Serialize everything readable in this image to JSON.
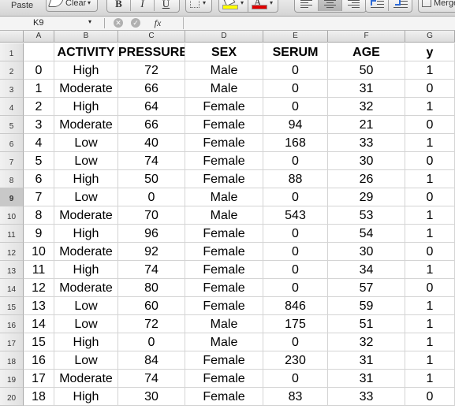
{
  "toolbar": {
    "paste_label": "Paste",
    "clear_label": "Clear",
    "bold_label": "B",
    "italic_label": "I",
    "underline_label": "U",
    "font_color_label": "A",
    "merge_label": "Merge",
    "fill_color": "#ffff00",
    "font_color": "#e00000"
  },
  "formula_bar": {
    "name_box": "K9",
    "fx_label": "fx",
    "formula": ""
  },
  "sheet": {
    "active_row": "9",
    "columns": [
      "A",
      "B",
      "C",
      "D",
      "E",
      "F",
      "G"
    ],
    "row_numbers": [
      "1",
      "2",
      "3",
      "4",
      "5",
      "6",
      "7",
      "8",
      "9",
      "10",
      "11",
      "12",
      "13",
      "14",
      "15",
      "16",
      "17",
      "18",
      "19",
      "20"
    ],
    "rows": [
      [
        "",
        "ACTIVITY",
        "PRESSURE",
        "SEX",
        "SERUM",
        "AGE",
        "y"
      ],
      [
        "0",
        "High",
        "72",
        "Male",
        "0",
        "50",
        "1"
      ],
      [
        "1",
        "Moderate",
        "66",
        "Male",
        "0",
        "31",
        "0"
      ],
      [
        "2",
        "High",
        "64",
        "Female",
        "0",
        "32",
        "1"
      ],
      [
        "3",
        "Moderate",
        "66",
        "Female",
        "94",
        "21",
        "0"
      ],
      [
        "4",
        "Low",
        "40",
        "Female",
        "168",
        "33",
        "1"
      ],
      [
        "5",
        "Low",
        "74",
        "Female",
        "0",
        "30",
        "0"
      ],
      [
        "6",
        "High",
        "50",
        "Female",
        "88",
        "26",
        "1"
      ],
      [
        "7",
        "Low",
        "0",
        "Male",
        "0",
        "29",
        "0"
      ],
      [
        "8",
        "Moderate",
        "70",
        "Male",
        "543",
        "53",
        "1"
      ],
      [
        "9",
        "High",
        "96",
        "Female",
        "0",
        "54",
        "1"
      ],
      [
        "10",
        "Moderate",
        "92",
        "Female",
        "0",
        "30",
        "0"
      ],
      [
        "11",
        "High",
        "74",
        "Female",
        "0",
        "34",
        "1"
      ],
      [
        "12",
        "Moderate",
        "80",
        "Female",
        "0",
        "57",
        "0"
      ],
      [
        "13",
        "Low",
        "60",
        "Female",
        "846",
        "59",
        "1"
      ],
      [
        "14",
        "Low",
        "72",
        "Male",
        "175",
        "51",
        "1"
      ],
      [
        "15",
        "High",
        "0",
        "Male",
        "0",
        "32",
        "1"
      ],
      [
        "16",
        "Low",
        "84",
        "Female",
        "230",
        "31",
        "1"
      ],
      [
        "17",
        "Moderate",
        "74",
        "Female",
        "0",
        "31",
        "1"
      ],
      [
        "18",
        "High",
        "30",
        "Female",
        "83",
        "33",
        "0"
      ]
    ]
  }
}
